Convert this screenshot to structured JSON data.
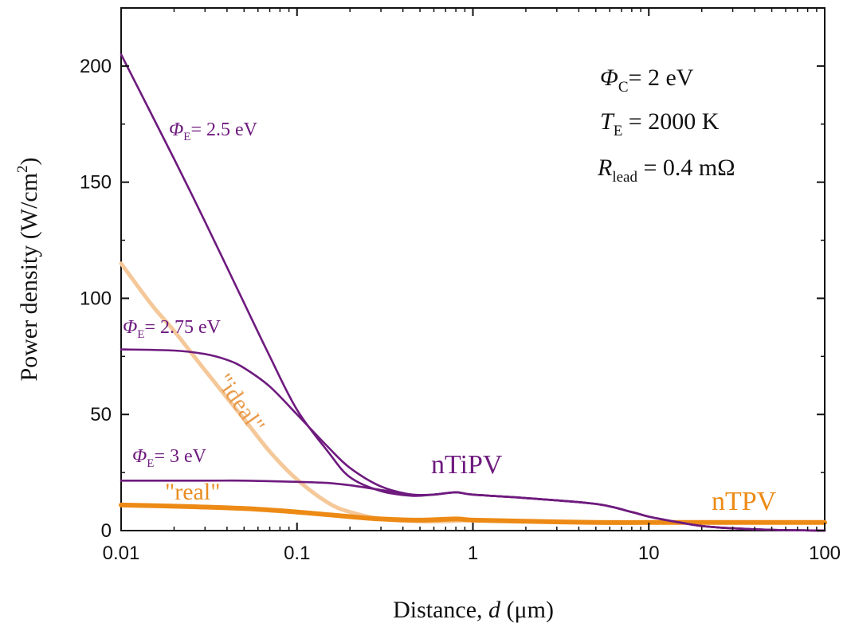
{
  "chart_data": {
    "type": "line",
    "x_scale": "log",
    "xlim": [
      0.01,
      100
    ],
    "ylim": [
      0,
      225
    ],
    "xlabel": {
      "prefix": "Distance, ",
      "var": "d",
      "suffix": " (μm)"
    },
    "ylabel": {
      "text": "Power density (W/cm",
      "sup": "2",
      "close": ")"
    },
    "x_ticks": [
      {
        "value": 0.01,
        "label": "0.01"
      },
      {
        "value": 0.1,
        "label": "0.1"
      },
      {
        "value": 1,
        "label": "1"
      },
      {
        "value": 10,
        "label": "10"
      },
      {
        "value": 100,
        "label": "100"
      }
    ],
    "y_ticks": [
      {
        "value": 0,
        "label": "0"
      },
      {
        "value": 50,
        "label": "50"
      },
      {
        "value": 100,
        "label": "100"
      },
      {
        "value": 150,
        "label": "150"
      },
      {
        "value": 200,
        "label": "200"
      }
    ],
    "parameters": {
      "phi_c": {
        "var": "Φ",
        "sub": "C",
        "value": "= 2 eV"
      },
      "t_e": {
        "var": "T",
        "sub": "E",
        "value": " = 2000 K"
      },
      "r_lead": {
        "var": "R",
        "sub": "lead",
        "value": " = 0.4 mΩ"
      }
    },
    "series": [
      {
        "id": "ideal",
        "label": "\"ideal\"",
        "color": "#f5c89a",
        "width": 5,
        "x": [
          0.01,
          0.015,
          0.02,
          0.03,
          0.05,
          0.07,
          0.1,
          0.15,
          0.2,
          0.3,
          0.5,
          0.7,
          1,
          2,
          5,
          10,
          20,
          50,
          100
        ],
        "y": [
          115,
          97,
          86,
          69,
          48,
          34,
          22,
          12,
          8,
          5,
          4,
          4,
          4.5,
          4,
          3.5,
          3.5,
          3.5,
          3.5,
          3.5
        ]
      },
      {
        "id": "real",
        "label": "\"real\"",
        "color": "#ed8a15",
        "width": 6,
        "x": [
          0.01,
          0.02,
          0.05,
          0.1,
          0.2,
          0.3,
          0.5,
          0.8,
          1,
          2,
          5,
          10,
          20,
          50,
          100
        ],
        "y": [
          11,
          10.5,
          9.5,
          8,
          6,
          5,
          4.5,
          5,
          4.5,
          4,
          3.5,
          3.5,
          3.5,
          3.5,
          3.5
        ]
      },
      {
        "id": "phi25",
        "label": "= 2.5 eV",
        "color": "#6e1a7e",
        "width": 2.6,
        "x": [
          0.01,
          0.02,
          0.03,
          0.05,
          0.07,
          0.1,
          0.15,
          0.2,
          0.3,
          0.45,
          0.6,
          0.8,
          1,
          2,
          5,
          8,
          10,
          15,
          20,
          30,
          50,
          100
        ],
        "y": [
          205,
          160,
          133,
          98,
          75,
          52,
          34,
          23,
          17,
          15,
          15.5,
          16.5,
          15.5,
          14,
          11.5,
          8,
          6,
          3.5,
          2,
          1,
          0.3,
          0
        ]
      },
      {
        "id": "phi275",
        "label": "= 2.75 eV",
        "color": "#6e1a7e",
        "width": 2.6,
        "x": [
          0.01,
          0.02,
          0.03,
          0.04,
          0.05,
          0.07,
          0.1,
          0.15,
          0.2,
          0.3,
          0.45,
          0.6,
          0.8,
          1,
          2,
          5,
          8,
          10,
          15,
          20,
          30,
          50,
          100
        ],
        "y": [
          78,
          77.5,
          76,
          73.5,
          70,
          62,
          50,
          36,
          27,
          19,
          15.5,
          15.5,
          16.5,
          15.5,
          14,
          11.5,
          8,
          6,
          3.5,
          2,
          1,
          0.3,
          0
        ]
      },
      {
        "id": "phi3",
        "label": "= 3 eV",
        "color": "#6e1a7e",
        "width": 2.6,
        "x": [
          0.01,
          0.03,
          0.05,
          0.1,
          0.15,
          0.2,
          0.3,
          0.45,
          0.6,
          0.8,
          1,
          2,
          5,
          8,
          10,
          15,
          20,
          30,
          50,
          100
        ],
        "y": [
          21.5,
          21.5,
          21.5,
          21,
          20.5,
          19.5,
          17.5,
          15.5,
          15.5,
          16.5,
          15.5,
          14,
          11.5,
          8,
          6,
          3.5,
          2,
          1,
          0.3,
          0
        ]
      }
    ],
    "annotations": {
      "phi25": {
        "var": "Φ",
        "sub": "E",
        "text": "= 2.5 eV",
        "color": "#6e1a7e"
      },
      "phi275": {
        "var": "Φ",
        "sub": "E",
        "text": "= 2.75 eV",
        "color": "#6e1a7e"
      },
      "phi3": {
        "var": "Φ",
        "sub": "E",
        "text": "= 3 eV",
        "color": "#6e1a7e"
      },
      "ideal": {
        "text": "\"ideal\"",
        "color": "#e89a4a"
      },
      "real": {
        "text": "\"real\"",
        "color": "#e88d22"
      },
      "ntipv": {
        "text": "nTiPV",
        "color": "#6e1a7e"
      },
      "ntpv": {
        "text": "nTPV",
        "color": "#ed8a15"
      }
    }
  }
}
